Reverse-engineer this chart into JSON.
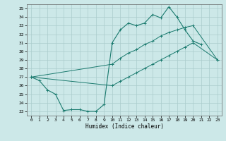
{
  "xlabel": "Humidex (Indice chaleur)",
  "bg_color": "#cce8e8",
  "grid_color": "#aacccc",
  "line_color": "#1a7a6e",
  "xlim": [
    -0.5,
    23.5
  ],
  "ylim": [
    22.5,
    35.5
  ],
  "xticks": [
    0,
    1,
    2,
    3,
    4,
    5,
    6,
    7,
    8,
    9,
    10,
    11,
    12,
    13,
    14,
    15,
    16,
    17,
    18,
    19,
    20,
    21,
    22,
    23
  ],
  "yticks": [
    23,
    24,
    25,
    26,
    27,
    28,
    29,
    30,
    31,
    32,
    33,
    34,
    35
  ],
  "line1_x": [
    0,
    1,
    2,
    3,
    4,
    5,
    6,
    7,
    8,
    9,
    10,
    11,
    12,
    13,
    14,
    15,
    16,
    17,
    18,
    19,
    20,
    21
  ],
  "line1_y": [
    27.0,
    26.6,
    25.5,
    25.0,
    23.1,
    23.2,
    23.2,
    23.0,
    23.0,
    23.8,
    31.0,
    32.5,
    33.3,
    33.0,
    33.3,
    34.3,
    33.9,
    35.2,
    34.0,
    32.5,
    31.2,
    30.8
  ],
  "line2_x": [
    0,
    10,
    11,
    12,
    13,
    14,
    15,
    16,
    17,
    18,
    19,
    20,
    23
  ],
  "line2_y": [
    27.0,
    28.5,
    29.2,
    29.8,
    30.2,
    30.8,
    31.2,
    31.8,
    32.2,
    32.5,
    32.8,
    33.0,
    29.0
  ],
  "line3_x": [
    0,
    10,
    11,
    12,
    13,
    14,
    15,
    16,
    17,
    18,
    19,
    20,
    23
  ],
  "line3_y": [
    27.0,
    26.0,
    26.5,
    27.0,
    27.5,
    28.0,
    28.5,
    29.0,
    29.5,
    30.0,
    30.5,
    31.0,
    29.0
  ]
}
